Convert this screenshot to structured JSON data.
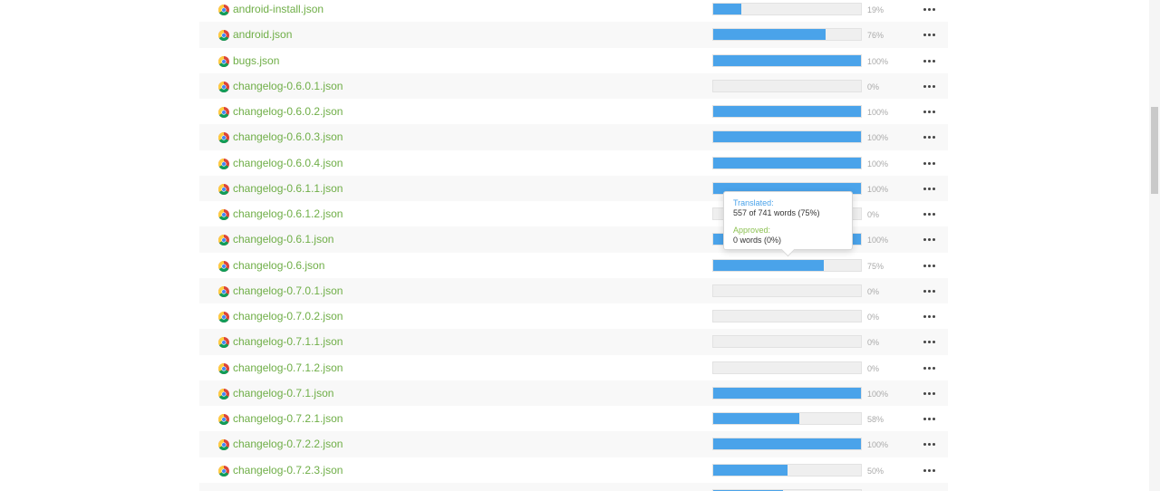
{
  "files": [
    {
      "name": "android-install.json",
      "percent": 19,
      "percent_label": "19%"
    },
    {
      "name": "android.json",
      "percent": 76,
      "percent_label": "76%"
    },
    {
      "name": "bugs.json",
      "percent": 100,
      "percent_label": "100%"
    },
    {
      "name": "changelog-0.6.0.1.json",
      "percent": 0,
      "percent_label": "0%"
    },
    {
      "name": "changelog-0.6.0.2.json",
      "percent": 100,
      "percent_label": "100%"
    },
    {
      "name": "changelog-0.6.0.3.json",
      "percent": 100,
      "percent_label": "100%"
    },
    {
      "name": "changelog-0.6.0.4.json",
      "percent": 100,
      "percent_label": "100%"
    },
    {
      "name": "changelog-0.6.1.1.json",
      "percent": 100,
      "percent_label": "100%"
    },
    {
      "name": "changelog-0.6.1.2.json",
      "percent": 0,
      "percent_label": "0%"
    },
    {
      "name": "changelog-0.6.1.json",
      "percent": 100,
      "percent_label": "100%"
    },
    {
      "name": "changelog-0.6.json",
      "percent": 75,
      "percent_label": "75%"
    },
    {
      "name": "changelog-0.7.0.1.json",
      "percent": 0,
      "percent_label": "0%"
    },
    {
      "name": "changelog-0.7.0.2.json",
      "percent": 0,
      "percent_label": "0%"
    },
    {
      "name": "changelog-0.7.1.1.json",
      "percent": 0,
      "percent_label": "0%"
    },
    {
      "name": "changelog-0.7.1.2.json",
      "percent": 0,
      "percent_label": "0%"
    },
    {
      "name": "changelog-0.7.1.json",
      "percent": 100,
      "percent_label": "100%"
    },
    {
      "name": "changelog-0.7.2.1.json",
      "percent": 58,
      "percent_label": "58%"
    },
    {
      "name": "changelog-0.7.2.2.json",
      "percent": 100,
      "percent_label": "100%"
    },
    {
      "name": "changelog-0.7.2.3.json",
      "percent": 50,
      "percent_label": "50%"
    },
    {
      "name": "",
      "percent": 47,
      "percent_label": ""
    }
  ],
  "tooltip": {
    "translated_label": "Translated:",
    "translated_value": "557 of 741 words (75%)",
    "approved_label": "Approved:",
    "approved_value": "0 words (0%)"
  },
  "icons": {
    "file": "chrome-icon",
    "more": "more-dots-icon"
  },
  "colors": {
    "file_name": "#6fae47",
    "progress_fill": "#4aa3ea",
    "translated_label": "#4aa3ea",
    "approved_label": "#8cc152"
  }
}
